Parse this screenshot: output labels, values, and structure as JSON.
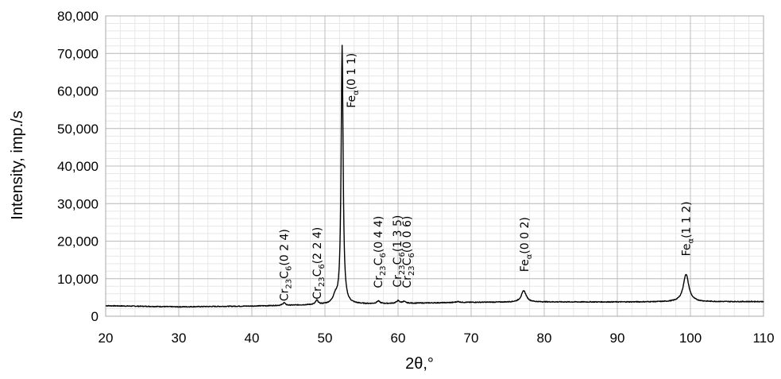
{
  "chart_data": {
    "type": "line",
    "xlabel": "2θ,°",
    "ylabel": "Intensity, imp./s",
    "xlim": [
      20,
      110
    ],
    "ylim": [
      0,
      80000
    ],
    "xticks": [
      20,
      30,
      40,
      50,
      60,
      70,
      80,
      90,
      100,
      110
    ],
    "yticks": [
      0,
      10000,
      20000,
      30000,
      40000,
      50000,
      60000,
      70000,
      80000
    ],
    "ytick_labels": [
      "0",
      "10,000",
      "20,000",
      "30,000",
      "40,000",
      "50,000",
      "60,000",
      "70,000",
      "80,000"
    ],
    "grid": true,
    "legend": "none",
    "baseline": [
      [
        20,
        2800
      ],
      [
        30,
        2500
      ],
      [
        40,
        2700
      ],
      [
        50,
        3100
      ],
      [
        60,
        3400
      ],
      [
        70,
        3700
      ],
      [
        80,
        3800
      ],
      [
        90,
        3800
      ],
      [
        110,
        3900
      ]
    ],
    "peaks": [
      {
        "x": 44.4,
        "y": 3600,
        "width": 0.2
      },
      {
        "x": 48.9,
        "y": 4200,
        "width": 0.2
      },
      {
        "x": 51.4,
        "y": 5000,
        "width": 0.35
      },
      {
        "x": 52.35,
        "y": 72000,
        "width": 0.16
      },
      {
        "x": 57.3,
        "y": 4000,
        "width": 0.25
      },
      {
        "x": 60.0,
        "y": 4100,
        "width": 0.25
      },
      {
        "x": 60.8,
        "y": 3900,
        "width": 0.25
      },
      {
        "x": 68.2,
        "y": 3900,
        "width": 0.3
      },
      {
        "x": 77.2,
        "y": 6800,
        "width": 0.4
      },
      {
        "x": 99.4,
        "y": 11200,
        "width": 0.45
      }
    ],
    "annotations": [
      {
        "main": "Cr",
        "sub1": "23",
        "mid": "C",
        "sub2": "6",
        "hkl": "(0 2 4)",
        "x": 44.4,
        "y": 4000
      },
      {
        "main": "Cr",
        "sub1": "23",
        "mid": "C",
        "sub2": "6",
        "hkl": "(2 2 4)",
        "x": 48.9,
        "y": 4500
      },
      {
        "main": "Fe",
        "sub1": "α",
        "mid": "",
        "sub2": "",
        "hkl": "(0 1 1)",
        "x": 53.6,
        "y": 55500
      },
      {
        "main": "Cr",
        "sub1": "23",
        "mid": "C",
        "sub2": "6",
        "hkl": "(0 4 4)",
        "x": 57.3,
        "y": 7500
      },
      {
        "main": "Cr",
        "sub1": "23",
        "mid": "C",
        "sub2": "6",
        "hkl": "(1 3 5)",
        "x": 59.9,
        "y": 7700
      },
      {
        "main": "Cr",
        "sub1": "23",
        "mid": "C",
        "sub2": "6",
        "hkl": "(0 0 6)",
        "x": 61.2,
        "y": 7500
      },
      {
        "main": "Fe",
        "sub1": "α",
        "mid": "",
        "sub2": "",
        "hkl": "(0 0 2)",
        "x": 77.3,
        "y": 11800
      },
      {
        "main": "Fe",
        "sub1": "α",
        "mid": "",
        "sub2": "",
        "hkl": "(1 1 2)",
        "x": 99.4,
        "y": 16000
      }
    ]
  }
}
